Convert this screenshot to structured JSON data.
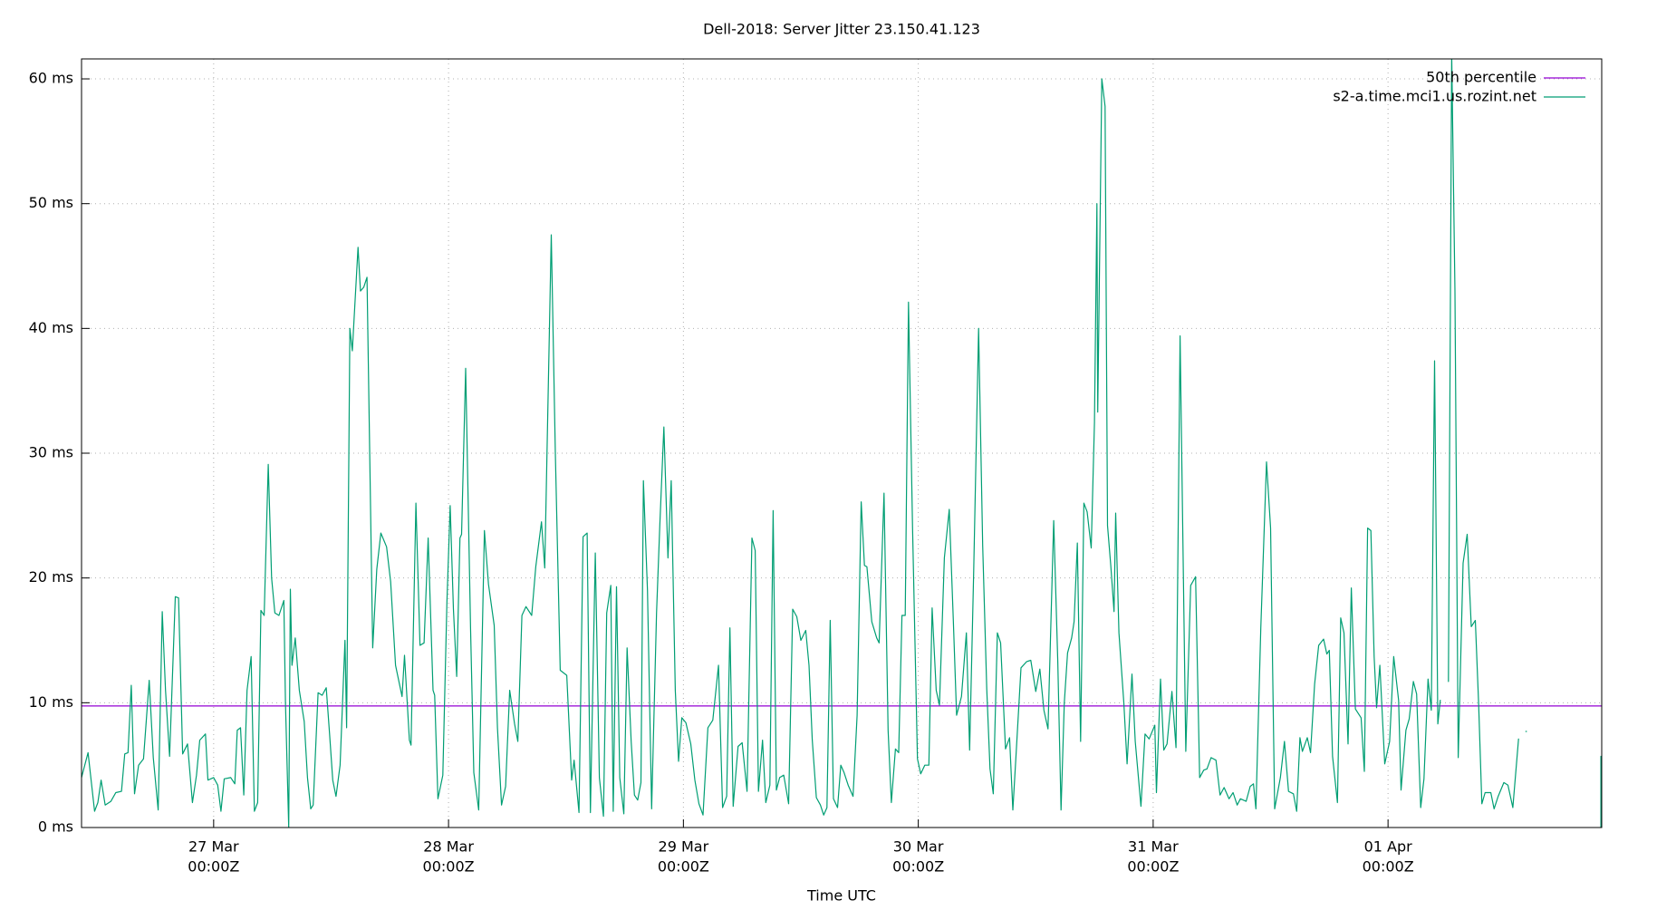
{
  "chart_data": {
    "type": "line",
    "title": "Dell-2018: Server Jitter 23.150.41.123",
    "x_label": "Time UTC",
    "xlim": [
      "26 Mar 10:30Z",
      "01 Apr 21:50Z"
    ],
    "xticks": [
      {
        "value": "27 Mar 00:00Z",
        "label": [
          "27 Mar",
          "00:00Z"
        ]
      },
      {
        "value": "28 Mar 00:00Z",
        "label": [
          "28 Mar",
          "00:00Z"
        ]
      },
      {
        "value": "29 Mar 00:00Z",
        "label": [
          "29 Mar",
          "00:00Z"
        ]
      },
      {
        "value": "30 Mar 00:00Z",
        "label": [
          "30 Mar",
          "00:00Z"
        ]
      },
      {
        "value": "31 Mar 00:00Z",
        "label": [
          "31 Mar",
          "00:00Z"
        ]
      },
      {
        "value": "01 Apr 00:00Z",
        "label": [
          "01 Apr",
          "00:00Z"
        ]
      }
    ],
    "ylim": [
      0,
      61.6
    ],
    "yticks": [
      {
        "value": 0,
        "label": "0 ms"
      },
      {
        "value": 10,
        "label": "10 ms"
      },
      {
        "value": 20,
        "label": "20 ms"
      },
      {
        "value": 30,
        "label": "30 ms"
      },
      {
        "value": 40,
        "label": "40 ms"
      },
      {
        "value": 50,
        "label": "50 ms"
      },
      {
        "value": 60,
        "label": "60 ms"
      }
    ],
    "grid": true,
    "legend": "top-right",
    "series": [
      {
        "name": "50th percentile",
        "color": "#9400d3",
        "x": [
          "26 Mar 10:30Z",
          "01 Apr 21:50Z"
        ],
        "values": [
          9.74,
          9.74
        ]
      },
      {
        "name": "s2-a.time.mci1.us.rozint.net",
        "color": "#009e73",
        "x": [
          "26 Mar 10:30Z",
          "26 Mar 11:10Z",
          "26 Mar 11:50Z",
          "26 Mar 12:10Z",
          "26 Mar 12:30Z",
          "26 Mar 12:55Z",
          "26 Mar 13:30Z",
          "26 Mar 14:00Z",
          "26 Mar 14:35Z",
          "26 Mar 14:55Z",
          "26 Mar 15:15Z",
          "26 Mar 15:35Z",
          "26 Mar 15:55Z",
          "26 Mar 16:20Z",
          "26 Mar 16:50Z",
          "26 Mar 17:25Z",
          "26 Mar 17:50Z",
          "26 Mar 18:20Z",
          "26 Mar 18:45Z",
          "26 Mar 19:05Z",
          "26 Mar 19:30Z",
          "26 Mar 20:05Z",
          "26 Mar 20:25Z",
          "26 Mar 20:50Z",
          "26 Mar 21:20Z",
          "26 Mar 21:50Z",
          "26 Mar 22:15Z",
          "26 Mar 22:35Z",
          "26 Mar 23:10Z",
          "26 Mar 23:25Z",
          "27 Mar 00:00Z",
          "27 Mar 00:25Z",
          "27 Mar 00:45Z",
          "27 Mar 01:05Z",
          "27 Mar 01:45Z",
          "27 Mar 02:10Z",
          "27 Mar 02:25Z",
          "27 Mar 02:45Z",
          "27 Mar 03:05Z",
          "27 Mar 03:25Z",
          "27 Mar 03:50Z",
          "27 Mar 04:10Z",
          "27 Mar 04:30Z",
          "27 Mar 04:50Z",
          "27 Mar 05:10Z",
          "27 Mar 05:35Z",
          "27 Mar 05:55Z",
          "27 Mar 06:15Z",
          "27 Mar 06:40Z",
          "27 Mar 07:10Z",
          "27 Mar 07:20Z",
          "27 Mar 07:40Z",
          "27 Mar 07:50Z",
          "27 Mar 08:00Z",
          "27 Mar 08:20Z",
          "27 Mar 08:45Z",
          "27 Mar 09:15Z",
          "27 Mar 09:35Z",
          "27 Mar 09:55Z",
          "27 Mar 10:10Z",
          "27 Mar 10:40Z",
          "27 Mar 11:05Z",
          "27 Mar 11:30Z",
          "27 Mar 11:50Z",
          "27 Mar 12:10Z",
          "27 Mar 12:30Z",
          "27 Mar 12:55Z",
          "27 Mar 13:25Z",
          "27 Mar 13:35Z",
          "27 Mar 13:55Z",
          "27 Mar 14:10Z",
          "27 Mar 14:45Z",
          "27 Mar 15:00Z",
          "27 Mar 15:20Z",
          "27 Mar 15:40Z",
          "27 Mar 16:15Z",
          "27 Mar 16:40Z",
          "27 Mar 17:05Z",
          "27 Mar 17:40Z",
          "27 Mar 18:05Z",
          "27 Mar 18:35Z",
          "27 Mar 19:15Z",
          "27 Mar 19:30Z",
          "27 Mar 20:00Z",
          "27 Mar 20:10Z",
          "27 Mar 20:40Z",
          "27 Mar 21:05Z",
          "27 Mar 21:30Z",
          "27 Mar 21:55Z",
          "27 Mar 22:25Z",
          "27 Mar 22:35Z",
          "27 Mar 22:55Z",
          "27 Mar 23:25Z",
          "27 Mar 23:50Z",
          "28 Mar 00:10Z",
          "28 Mar 00:30Z",
          "28 Mar 00:50Z",
          "28 Mar 01:10Z",
          "28 Mar 01:20Z",
          "28 Mar 01:45Z",
          "28 Mar 02:15Z",
          "28 Mar 02:35Z",
          "28 Mar 03:05Z",
          "28 Mar 03:40Z",
          "28 Mar 04:05Z",
          "28 Mar 04:40Z",
          "28 Mar 05:00Z",
          "28 Mar 05:25Z",
          "28 Mar 05:50Z",
          "28 Mar 06:15Z",
          "28 Mar 06:45Z",
          "28 Mar 07:05Z",
          "28 Mar 07:30Z",
          "28 Mar 07:55Z",
          "28 Mar 08:30Z",
          "28 Mar 08:55Z",
          "28 Mar 09:30Z",
          "28 Mar 09:50Z",
          "28 Mar 10:30Z",
          "28 Mar 10:55Z",
          "28 Mar 11:25Z",
          "28 Mar 12:05Z",
          "28 Mar 12:35Z",
          "28 Mar 12:50Z",
          "28 Mar 13:20Z",
          "28 Mar 13:45Z",
          "28 Mar 14:10Z",
          "28 Mar 14:30Z",
          "28 Mar 15:00Z",
          "28 Mar 15:25Z",
          "28 Mar 15:50Z",
          "28 Mar 16:10Z",
          "28 Mar 16:35Z",
          "28 Mar 16:50Z",
          "28 Mar 17:10Z",
          "28 Mar 17:30Z",
          "28 Mar 17:55Z",
          "28 Mar 18:15Z",
          "28 Mar 18:40Z",
          "28 Mar 19:00Z",
          "28 Mar 19:20Z",
          "28 Mar 19:40Z",
          "28 Mar 19:55Z",
          "28 Mar 20:20Z",
          "28 Mar 20:45Z",
          "28 Mar 21:15Z",
          "28 Mar 21:35Z",
          "28 Mar 22:00Z",
          "28 Mar 22:25Z",
          "28 Mar 22:45Z",
          "28 Mar 23:10Z",
          "28 Mar 23:30Z",
          "28 Mar 23:50Z",
          "29 Mar 00:15Z",
          "29 Mar 00:45Z",
          "29 Mar 01:10Z",
          "29 Mar 01:35Z",
          "29 Mar 02:00Z",
          "29 Mar 02:30Z",
          "29 Mar 03:00Z",
          "29 Mar 03:35Z",
          "29 Mar 04:00Z",
          "29 Mar 04:25Z",
          "29 Mar 04:45Z",
          "29 Mar 05:05Z",
          "29 Mar 05:35Z",
          "29 Mar 06:00Z",
          "29 Mar 06:30Z",
          "29 Mar 07:00Z",
          "29 Mar 07:20Z",
          "29 Mar 07:40Z",
          "29 Mar 08:05Z",
          "29 Mar 08:25Z",
          "29 Mar 08:50Z",
          "29 Mar 09:10Z",
          "29 Mar 09:30Z",
          "29 Mar 09:50Z",
          "29 Mar 10:15Z",
          "29 Mar 10:45Z",
          "29 Mar 11:10Z",
          "29 Mar 11:35Z",
          "29 Mar 12:00Z",
          "29 Mar 12:30Z",
          "29 Mar 12:50Z",
          "29 Mar 13:10Z",
          "29 Mar 13:35Z",
          "29 Mar 14:00Z",
          "29 Mar 14:20Z",
          "29 Mar 14:40Z",
          "29 Mar 15:00Z",
          "29 Mar 15:20Z",
          "29 Mar 15:45Z",
          "29 Mar 16:05Z",
          "29 Mar 16:25Z",
          "29 Mar 16:50Z",
          "29 Mar 17:20Z",
          "29 Mar 17:45Z",
          "29 Mar 18:10Z",
          "29 Mar 18:30Z",
          "29 Mar 18:45Z",
          "29 Mar 19:15Z",
          "29 Mar 19:45Z",
          "29 Mar 20:00Z",
          "29 Mar 20:30Z",
          "29 Mar 20:55Z",
          "29 Mar 21:15Z",
          "29 Mar 21:40Z",
          "29 Mar 22:00Z",
          "29 Mar 22:20Z",
          "29 Mar 22:40Z",
          "29 Mar 23:00Z",
          "29 Mar 23:25Z",
          "29 Mar 23:55Z",
          "30 Mar 00:15Z",
          "30 Mar 00:40Z",
          "30 Mar 01:05Z",
          "30 Mar 01:25Z",
          "30 Mar 01:50Z",
          "30 Mar 02:10Z",
          "30 Mar 02:40Z",
          "30 Mar 03:10Z",
          "30 Mar 03:35Z",
          "30 Mar 03:55Z",
          "30 Mar 04:25Z",
          "30 Mar 04:55Z",
          "30 Mar 05:15Z",
          "30 Mar 05:40Z",
          "30 Mar 06:10Z",
          "30 Mar 06:35Z",
          "30 Mar 07:00Z",
          "30 Mar 07:20Z",
          "30 Mar 07:40Z",
          "30 Mar 08:05Z",
          "30 Mar 08:25Z",
          "30 Mar 08:55Z",
          "30 Mar 09:20Z",
          "30 Mar 09:40Z",
          "30 Mar 10:00Z",
          "30 Mar 10:30Z",
          "30 Mar 11:05Z",
          "30 Mar 11:30Z",
          "30 Mar 12:00Z",
          "30 Mar 12:25Z",
          "30 Mar 12:50Z",
          "30 Mar 13:15Z",
          "30 Mar 13:50Z",
          "30 Mar 14:15Z",
          "30 Mar 14:35Z",
          "30 Mar 14:55Z",
          "30 Mar 15:15Z",
          "30 Mar 15:40Z",
          "30 Mar 15:55Z",
          "30 Mar 16:15Z",
          "30 Mar 16:35Z",
          "30 Mar 16:55Z",
          "30 Mar 17:15Z",
          "30 Mar 17:40Z",
          "30 Mar 18:00Z",
          "30 Mar 18:15Z",
          "30 Mar 18:20Z",
          "30 Mar 18:45Z",
          "30 Mar 19:05Z",
          "30 Mar 19:20Z",
          "30 Mar 19:40Z",
          "30 Mar 20:00Z",
          "30 Mar 20:10Z",
          "30 Mar 20:30Z",
          "30 Mar 21:00Z",
          "30 Mar 21:20Z",
          "30 Mar 21:50Z",
          "30 Mar 22:10Z",
          "30 Mar 22:45Z",
          "30 Mar 23:10Z",
          "30 Mar 23:35Z",
          "31 Mar 00:10Z",
          "31 Mar 00:20Z",
          "31 Mar 00:45Z",
          "31 Mar 01:05Z",
          "31 Mar 01:25Z",
          "31 Mar 01:55Z",
          "31 Mar 02:20Z",
          "31 Mar 02:45Z",
          "31 Mar 03:20Z",
          "31 Mar 03:50Z",
          "31 Mar 04:20Z",
          "31 Mar 04:45Z",
          "31 Mar 05:10Z",
          "31 Mar 05:30Z",
          "31 Mar 05:55Z",
          "31 Mar 06:25Z",
          "31 Mar 06:50Z",
          "31 Mar 07:15Z",
          "31 Mar 07:45Z",
          "31 Mar 08:10Z",
          "31 Mar 08:35Z",
          "31 Mar 08:55Z",
          "31 Mar 09:30Z",
          "31 Mar 09:55Z",
          "31 Mar 10:15Z",
          "31 Mar 10:30Z",
          "31 Mar 11:00Z",
          "31 Mar 11:35Z",
          "31 Mar 12:00Z",
          "31 Mar 12:25Z",
          "31 Mar 13:00Z",
          "31 Mar 13:25Z",
          "31 Mar 13:50Z",
          "31 Mar 14:20Z",
          "31 Mar 14:40Z",
          "31 Mar 15:00Z",
          "31 Mar 15:15Z",
          "31 Mar 15:45Z",
          "31 Mar 16:05Z",
          "31 Mar 16:30Z",
          "31 Mar 16:55Z",
          "31 Mar 17:25Z",
          "31 Mar 17:45Z",
          "31 Mar 18:00Z",
          "31 Mar 18:20Z",
          "31 Mar 18:50Z",
          "31 Mar 19:10Z",
          "31 Mar 19:30Z",
          "31 Mar 19:55Z",
          "31 Mar 20:15Z",
          "31 Mar 20:40Z",
          "31 Mar 21:15Z",
          "31 Mar 21:35Z",
          "31 Mar 21:55Z",
          "31 Mar 22:15Z",
          "31 Mar 22:35Z",
          "31 Mar 22:50Z",
          "31 Mar 23:10Z",
          "31 Mar 23:40Z",
          "01 Apr 00:10Z",
          "01 Apr 00:35Z",
          "01 Apr 01:05Z",
          "01 Apr 01:20Z",
          "01 Apr 01:50Z",
          "01 Apr 02:10Z",
          "01 Apr 02:35Z",
          "01 Apr 02:55Z",
          "01 Apr 03:20Z",
          "01 Apr 03:40Z",
          "01 Apr 04:05Z",
          "01 Apr 04:25Z",
          "01 Apr 04:45Z",
          "01 Apr 05:05Z",
          "01 Apr 05:20Z",
          "01 Apr 05:45Z",
          "01 Apr 06:10Z",
          "01 Apr 06:30Z",
          "01 Apr 06:50Z",
          "01 Apr 07:10Z",
          "01 Apr 07:40Z",
          "01 Apr 08:05Z",
          "01 Apr 08:30Z",
          "01 Apr 08:55Z",
          "01 Apr 09:15Z",
          "01 Apr 09:35Z",
          "01 Apr 09:55Z",
          "01 Apr 10:30Z",
          "01 Apr 10:50Z",
          "01 Apr 11:15Z",
          "01 Apr 11:50Z",
          "01 Apr 12:15Z",
          "01 Apr 12:45Z",
          "01 Apr 13:20Z",
          "01 Apr 13:40Z",
          "01 Apr 14:05Z",
          "01 Apr 17:15Z",
          "01 Apr 21:45Z",
          "01 Apr 21:45Z"
        ],
        "values": [
          4,
          6,
          1.3,
          2,
          3.8,
          1.8,
          2.1,
          2.8,
          2.9,
          5.9,
          6,
          11.4,
          2.7,
          5,
          5.5,
          11.8,
          5.6,
          1.4,
          17.3,
          11,
          5.7,
          18.5,
          18.4,
          5.9,
          6.7,
          2,
          4.2,
          7,
          7.5,
          3.8,
          4,
          3.4,
          1.3,
          3.9,
          4,
          3.5,
          7.8,
          8,
          2.6,
          11,
          13.7,
          1.3,
          2,
          17.4,
          17,
          29.1,
          20,
          17.2,
          17,
          18.2,
          10,
          0,
          19.1,
          13,
          15.2,
          11,
          8.5,
          4,
          1.5,
          1.8,
          10.8,
          10.6,
          11.2,
          7.6,
          3.8,
          2.5,
          5,
          15,
          8,
          40,
          38.2,
          46.5,
          43,
          43.3,
          44.1,
          14.4,
          20.7,
          23.6,
          22.5,
          19.7,
          13,
          10.5,
          13.8,
          7,
          6.6,
          26,
          14.6,
          14.8,
          23.2,
          11,
          10.6,
          2.3,
          4.2,
          18,
          25.8,
          17.5,
          12.1,
          23.2,
          23.5,
          36.8,
          16,
          4.4,
          1.4,
          23.8,
          19.5,
          16.2,
          8,
          1.8,
          3.3,
          11,
          8.3,
          6.9,
          17,
          17.7,
          17,
          20.9,
          24.5,
          20.8,
          47.5,
          30,
          12.6,
          12.2,
          3.8,
          5.4,
          1.2,
          23.3,
          23.6,
          1.2,
          22,
          4,
          0.9,
          17.2,
          19.4,
          1.3,
          19.3,
          4,
          1.1,
          14.4,
          6.9,
          2.6,
          2.2,
          3.6,
          27.8,
          19,
          1.5,
          17.2,
          24.2,
          32.1,
          21.6,
          27.8,
          11,
          5.3,
          8.8,
          8.4,
          6.7,
          3.8,
          1.9,
          1,
          8,
          8.6,
          13,
          1.6,
          2.5,
          16,
          1.7,
          6.5,
          6.8,
          2.9,
          23.2,
          22.2,
          2.9,
          7,
          2,
          3.4,
          25.4,
          3,
          4,
          4.2,
          1.9,
          17.5,
          16.9,
          15,
          15.8,
          13,
          7,
          2.4,
          1.8,
          1,
          1.6,
          16.6,
          2.3,
          1.6,
          5,
          4.4,
          3.4,
          2.5,
          9,
          26.1,
          21,
          20.9,
          16.5,
          15.2,
          14.8,
          26.8,
          7.8,
          2,
          6.3,
          6,
          17,
          17,
          42.1,
          24,
          5.5,
          4.3,
          5,
          5,
          17.6,
          11,
          9.8,
          21.6,
          25.5,
          16.6,
          9,
          10.5,
          15.6,
          6.2,
          20.6,
          40,
          22.6,
          11.1,
          4.7,
          2.7,
          15.6,
          14.8,
          6.3,
          7.2,
          1.4,
          5.9,
          12.8,
          13.3,
          13.4,
          10.9,
          12.7,
          9.4,
          7.9,
          24.6,
          13.3,
          1.4,
          10,
          14,
          15.2,
          16.5,
          22.8,
          6.9,
          26,
          25.3,
          22.4,
          32.5,
          50,
          33.3,
          60,
          57.8,
          24.2,
          21,
          17.3,
          25.2,
          15.6,
          10,
          5.1,
          12.3,
          6.9,
          1.7,
          7.5,
          7.1,
          8.2,
          2.8,
          11.9,
          6.2,
          6.7,
          10.9,
          6.4,
          39.4,
          6.1,
          19.4,
          20.1,
          4,
          4.6,
          4.7,
          5.6,
          5.4,
          2.6,
          3.2,
          2.3,
          2.8,
          1.8,
          2.3,
          2.1,
          3.3,
          3.5,
          1.5,
          16,
          29.3,
          24,
          1.5,
          4,
          6.9,
          2.9,
          2.7,
          1.3,
          7.2,
          6.1,
          7.2,
          6,
          11.5,
          14.6,
          15.1,
          13.9,
          14.2,
          5.7,
          2,
          16.8,
          15.6,
          6.7,
          19.2,
          9.5,
          8.8,
          4.5,
          24,
          23.8,
          13.7,
          9.6,
          13,
          5.1,
          6.9,
          13.7,
          10.2,
          3,
          7.8,
          8.7,
          11.7,
          10.7,
          1.6,
          3.9,
          11.9,
          9.4,
          37.4,
          8.3,
          10.2,
          null,
          11.7,
          62,
          43,
          5.6,
          21.2,
          23.5,
          16.1,
          16.6,
          10,
          1.9,
          2.8,
          2.8,
          1.5,
          2.5,
          3.6,
          3.4,
          1.6,
          7.1,
          null,
          7.7,
          null,
          0,
          5.7
        ]
      }
    ]
  }
}
